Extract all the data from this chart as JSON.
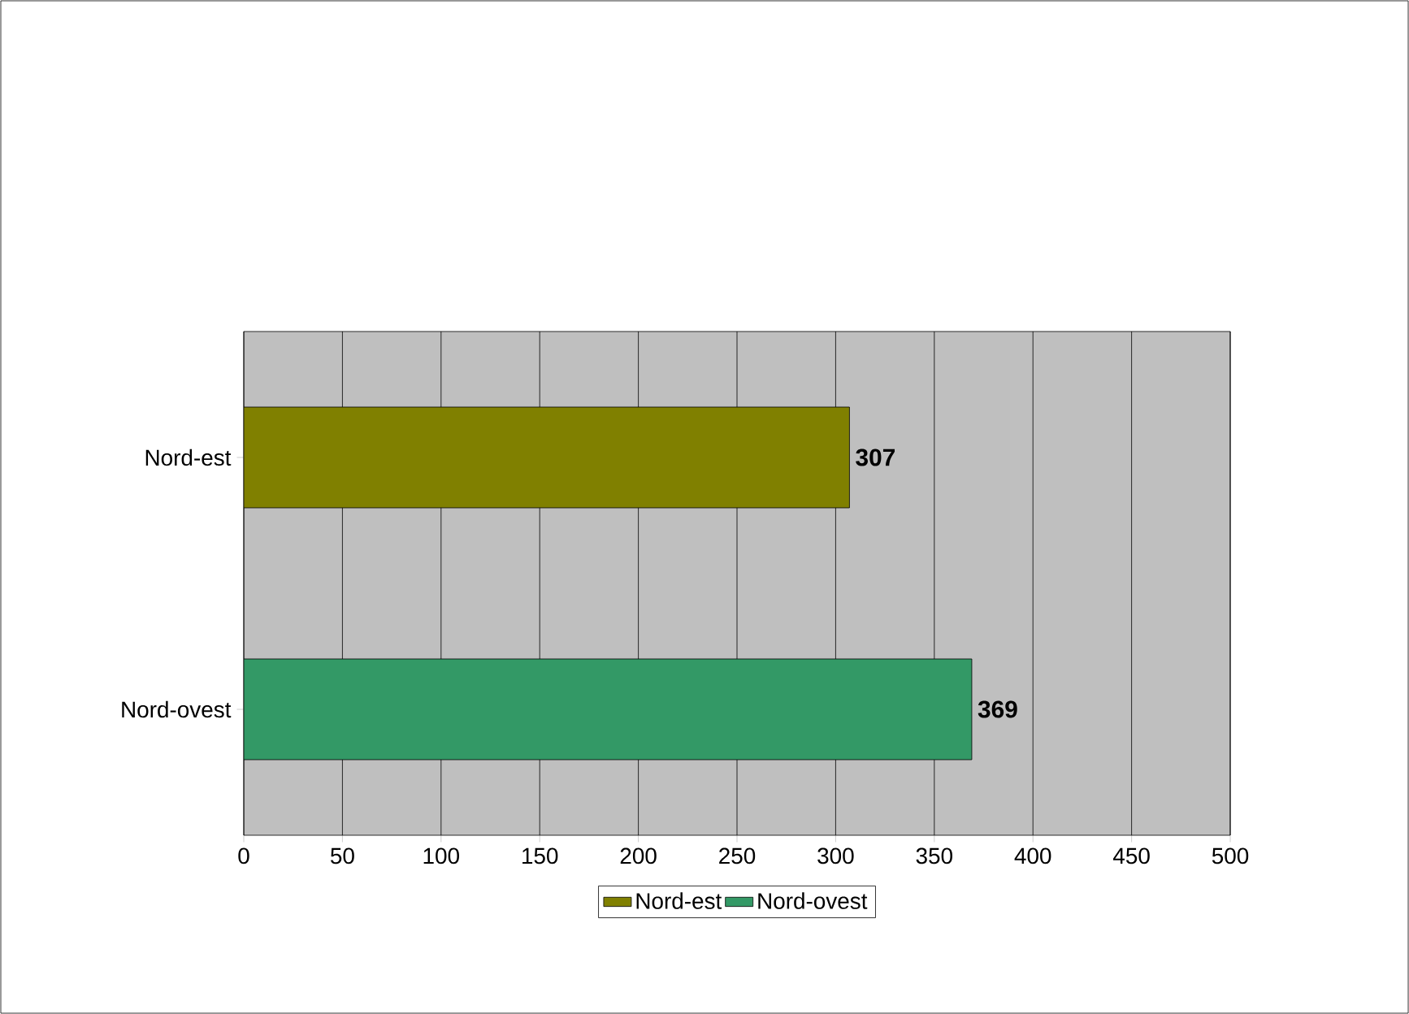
{
  "chart_data": {
    "type": "bar",
    "orientation": "horizontal",
    "categories": [
      "Nord-est",
      "Nord-ovest"
    ],
    "series": [
      {
        "name": "Nord-est",
        "color": "#808000",
        "values": [
          307,
          null
        ]
      },
      {
        "name": "Nord-ovest",
        "color": "#339966",
        "values": [
          null,
          369
        ]
      }
    ],
    "xlim": [
      0,
      500
    ],
    "xticks": [
      0,
      50,
      100,
      150,
      200,
      250,
      300,
      350,
      400,
      450,
      500
    ],
    "grid": "x",
    "legend": "bottom",
    "data_labels": true
  }
}
